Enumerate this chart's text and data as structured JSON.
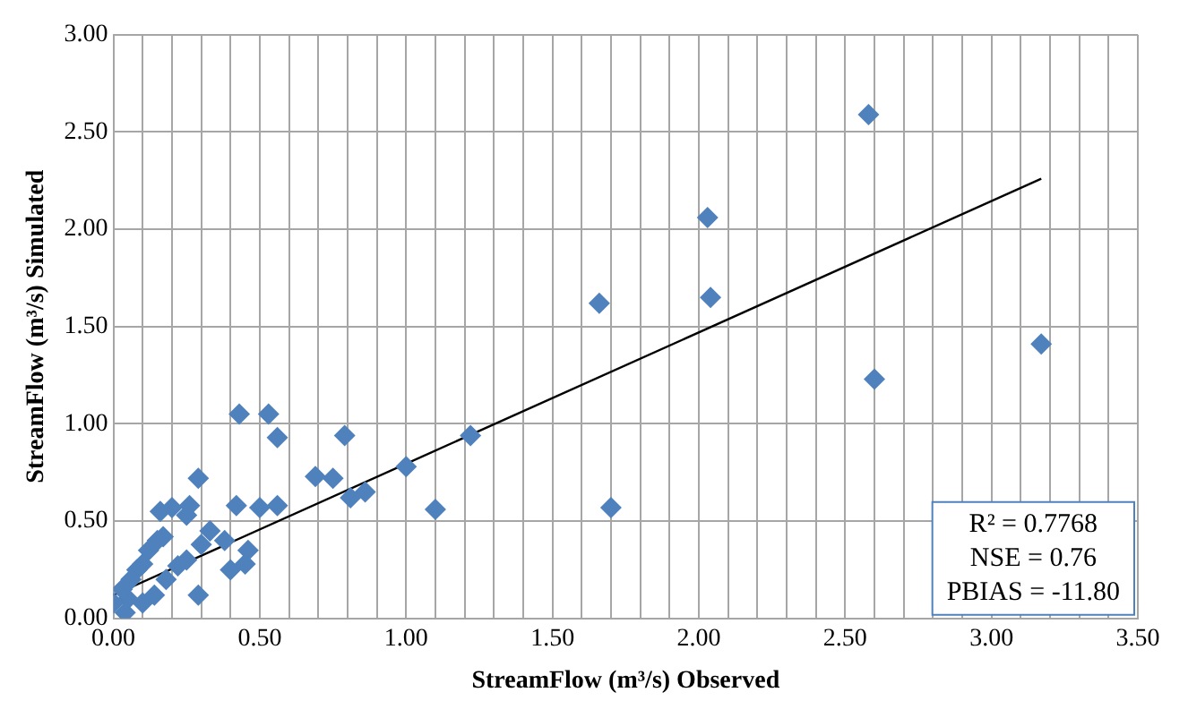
{
  "chart_data": {
    "type": "scatter",
    "xlabel": "StreamFlow (m³/s) Observed",
    "ylabel": "StreamFlow (m³/s) Simulated",
    "xlim": [
      0,
      3.5
    ],
    "xticks": [
      {
        "value": 0,
        "label": "0.00"
      },
      {
        "value": 0.1,
        "label": null
      },
      {
        "value": 0.2,
        "label": null
      },
      {
        "value": 0.3,
        "label": null
      },
      {
        "value": 0.4,
        "label": null
      },
      {
        "value": 0.5,
        "label": "0.50"
      },
      {
        "value": 0.6,
        "label": null
      },
      {
        "value": 0.7,
        "label": null
      },
      {
        "value": 0.8,
        "label": null
      },
      {
        "value": 0.9,
        "label": null
      },
      {
        "value": 1,
        "label": "1.00"
      },
      {
        "value": 1.1,
        "label": null
      },
      {
        "value": 1.2,
        "label": null
      },
      {
        "value": 1.3,
        "label": null
      },
      {
        "value": 1.4,
        "label": null
      },
      {
        "value": 1.5,
        "label": "1.50"
      },
      {
        "value": 1.6,
        "label": null
      },
      {
        "value": 1.7,
        "label": null
      },
      {
        "value": 1.8,
        "label": null
      },
      {
        "value": 1.9,
        "label": null
      },
      {
        "value": 2,
        "label": "2.00"
      },
      {
        "value": 2.1,
        "label": null
      },
      {
        "value": 2.2,
        "label": null
      },
      {
        "value": 2.3,
        "label": null
      },
      {
        "value": 2.4,
        "label": null
      },
      {
        "value": 2.5,
        "label": "2.50"
      },
      {
        "value": 2.6,
        "label": null
      },
      {
        "value": 2.7,
        "label": null
      },
      {
        "value": 2.8,
        "label": null
      },
      {
        "value": 2.9,
        "label": null
      },
      {
        "value": 3,
        "label": "3.00"
      },
      {
        "value": 3.1,
        "label": null
      },
      {
        "value": 3.2,
        "label": null
      },
      {
        "value": 3.3,
        "label": null
      },
      {
        "value": 3.4,
        "label": null
      },
      {
        "value": 3.5,
        "label": "3.50"
      }
    ],
    "ylim": [
      0,
      3
    ],
    "yticks": [
      {
        "value": 0,
        "label": "0.00"
      },
      {
        "value": 0.5,
        "label": "0.50"
      },
      {
        "value": 1,
        "label": "1.00"
      },
      {
        "value": 1.5,
        "label": "1.50"
      },
      {
        "value": 2,
        "label": "2.00"
      },
      {
        "value": 2.5,
        "label": "2.50"
      },
      {
        "value": 3,
        "label": "3.00"
      }
    ],
    "grid": true,
    "marker": "diamond",
    "series": [
      {
        "color": "#4f81bd",
        "x": [
          2.58,
          2.03,
          2.04,
          1.66,
          2.6,
          3.17,
          1.7,
          1.22,
          1.0,
          1.1,
          0.86,
          0.81,
          0.79,
          0.75,
          0.69,
          0.56,
          0.56,
          0.53,
          0.43,
          0.5,
          0.42,
          0.46,
          0.45,
          0.4,
          0.38,
          0.29,
          0.26,
          0.25,
          0.25,
          0.22,
          0.29,
          0.2,
          0.16,
          0.17,
          0.15,
          0.12,
          0.18,
          0.14,
          0.1,
          0.08,
          0.06,
          0.1,
          0.05,
          0.03,
          0.0,
          0.04,
          0.33,
          0.3
        ],
        "values": [
          2.59,
          2.06,
          1.65,
          1.62,
          1.23,
          1.41,
          0.57,
          0.94,
          0.78,
          0.56,
          0.65,
          0.62,
          0.94,
          0.72,
          0.73,
          0.58,
          0.93,
          1.05,
          1.05,
          0.57,
          0.58,
          0.35,
          0.28,
          0.25,
          0.4,
          0.72,
          0.58,
          0.53,
          0.3,
          0.27,
          0.12,
          0.57,
          0.55,
          0.42,
          0.4,
          0.35,
          0.2,
          0.12,
          0.28,
          0.25,
          0.2,
          0.08,
          0.1,
          0.15,
          0.08,
          0.03,
          0.45,
          0.38
        ]
      },
      {
        "type": "line",
        "marker": "none",
        "color": "#000000",
        "x": [
          0,
          3.17
        ],
        "values": [
          0.12,
          2.26
        ]
      }
    ],
    "annotations": [
      "R² = 0.7768",
      "NSE = 0.76",
      "PBIAS = -11.80"
    ]
  }
}
